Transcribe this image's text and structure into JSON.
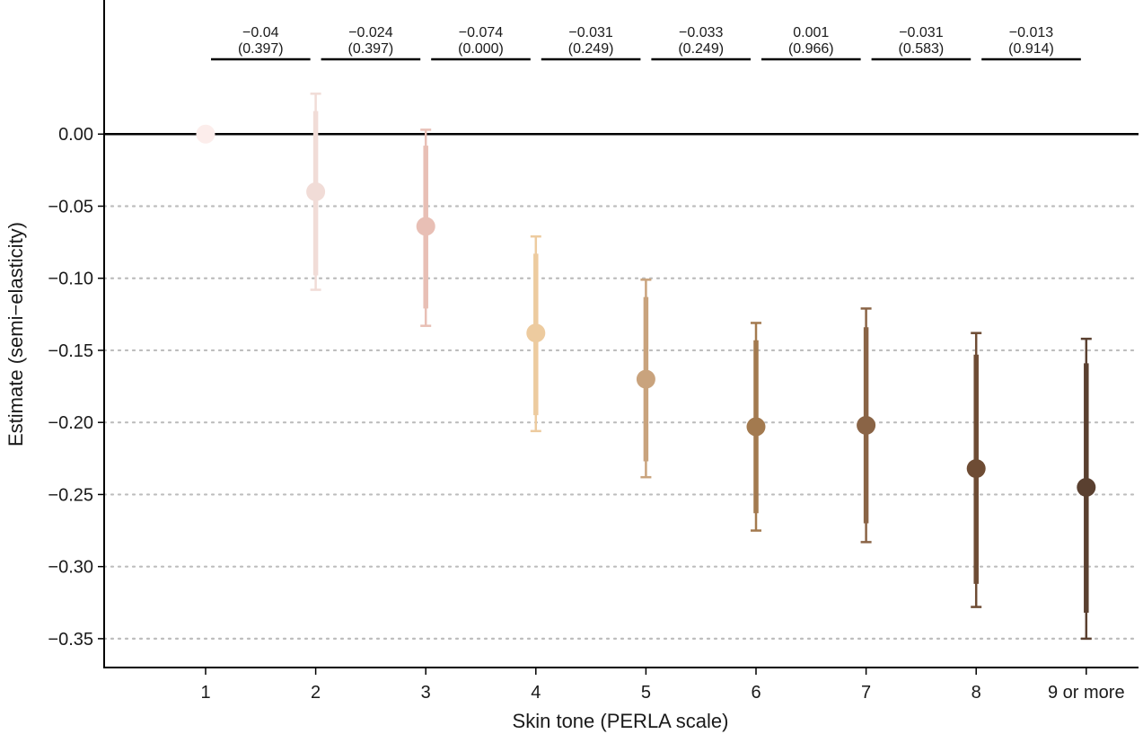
{
  "chart_data": {
    "type": "errorbar",
    "title": "",
    "xlabel": "Skin tone (PERLA scale)",
    "ylabel": "Estimate (semi−elasticity)",
    "categories": [
      "1",
      "2",
      "3",
      "4",
      "5",
      "6",
      "7",
      "8",
      "9 or more"
    ],
    "estimates": [
      0.0,
      -0.04,
      -0.064,
      -0.138,
      -0.17,
      -0.203,
      -0.202,
      -0.232,
      -0.245
    ],
    "ci_inner": [
      null,
      [
        -0.098,
        0.016
      ],
      [
        -0.121,
        -0.008
      ],
      [
        -0.195,
        -0.083
      ],
      [
        -0.227,
        -0.113
      ],
      [
        -0.263,
        -0.143
      ],
      [
        -0.27,
        -0.134
      ],
      [
        -0.312,
        -0.153
      ],
      [
        -0.332,
        -0.159
      ]
    ],
    "ci_outer": [
      null,
      [
        -0.108,
        0.028
      ],
      [
        -0.133,
        0.003
      ],
      [
        -0.206,
        -0.071
      ],
      [
        -0.238,
        -0.101
      ],
      [
        -0.275,
        -0.131
      ],
      [
        -0.283,
        -0.121
      ],
      [
        -0.328,
        -0.138
      ],
      [
        -0.35,
        -0.142
      ]
    ],
    "colors": [
      "#fcedeb",
      "#f1dcd7",
      "#e8bfb5",
      "#edcb9f",
      "#c9a37d",
      "#a37a4f",
      "#8a6446",
      "#6e4c34",
      "#5a4030"
    ],
    "y_ticks": [
      "0.00",
      "-0.05",
      "-0.10",
      "-0.15",
      "-0.20",
      "-0.25",
      "-0.30",
      "-0.35"
    ],
    "y_tick_values": [
      0.0,
      -0.05,
      -0.1,
      -0.15,
      -0.2,
      -0.25,
      -0.3,
      -0.35
    ],
    "ylim": [
      -0.37,
      0.093
    ],
    "reference_line": 0.0,
    "pairwise_differences": [
      {
        "diff": "−0.04",
        "p": "(0.397)"
      },
      {
        "diff": "−0.024",
        "p": "(0.397)"
      },
      {
        "diff": "−0.074",
        "p": "(0.000)"
      },
      {
        "diff": "−0.031",
        "p": "(0.249)"
      },
      {
        "diff": "−0.033",
        "p": "(0.249)"
      },
      {
        "diff": "0.001",
        "p": "(0.966)"
      },
      {
        "diff": "−0.031",
        "p": "(0.583)"
      },
      {
        "diff": "−0.013",
        "p": "(0.914)"
      }
    ]
  }
}
